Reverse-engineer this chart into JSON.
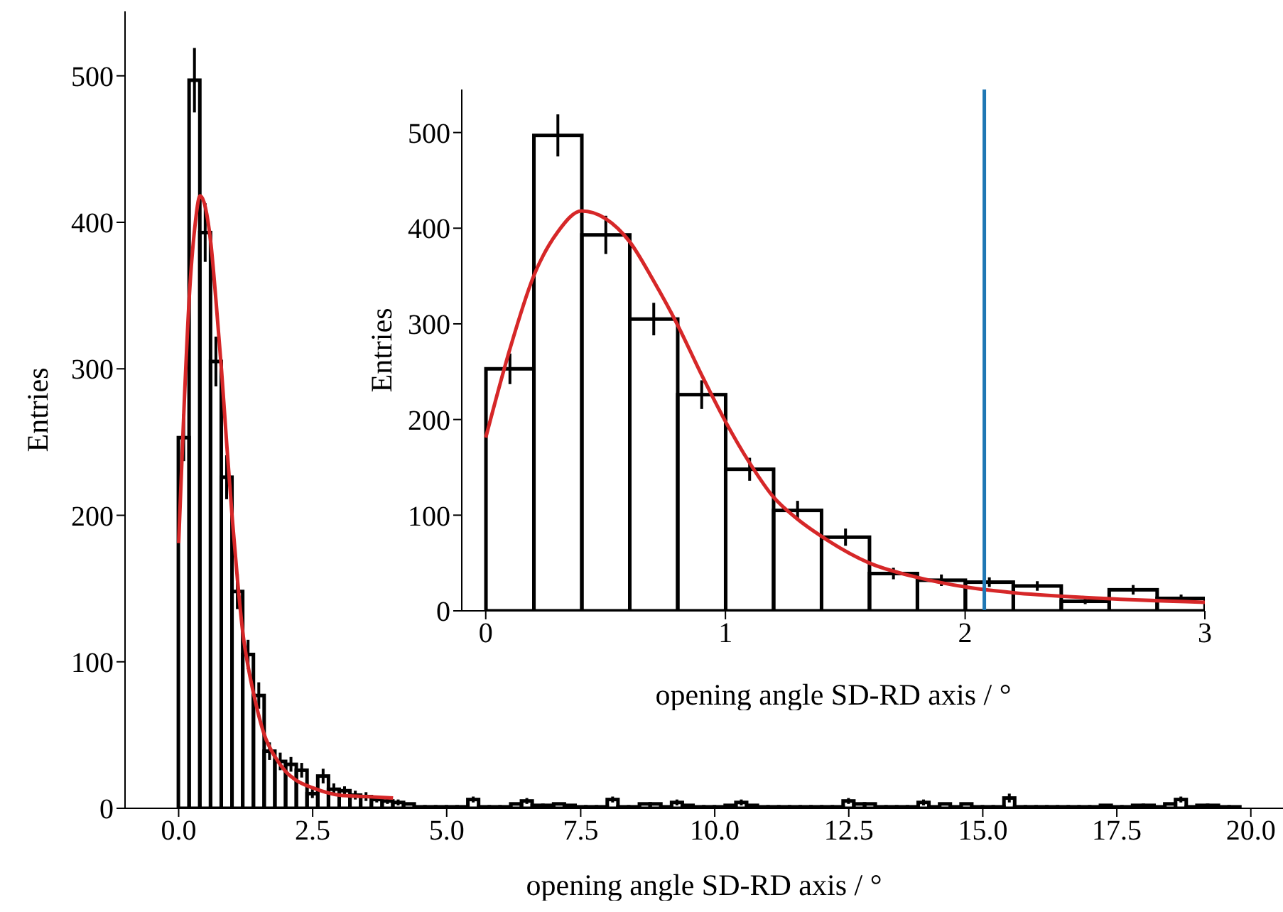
{
  "chart_data": [
    {
      "type": "histogram",
      "xlabel": "opening angle SD-RD axis / °",
      "ylabel": "Entries",
      "xlim": [
        -1,
        20.6
      ],
      "xticks": [
        {
          "value": 0,
          "label": "0.0"
        },
        {
          "value": 2.5,
          "label": "2.5"
        },
        {
          "value": 5,
          "label": "5.0"
        },
        {
          "value": 7.5,
          "label": "7.5"
        },
        {
          "value": 10,
          "label": "10.0"
        },
        {
          "value": 12.5,
          "label": "12.5"
        },
        {
          "value": 15,
          "label": "15.0"
        },
        {
          "value": 17.5,
          "label": "17.5"
        },
        {
          "value": 20,
          "label": "20.0"
        }
      ],
      "ylim": [
        0,
        544
      ],
      "yticks": [
        0,
        100,
        200,
        300,
        400,
        500
      ],
      "series": [
        {
          "type": "histogram",
          "color": "#000000",
          "bins": [
            0,
            0.2,
            0.4,
            0.6,
            0.8,
            1,
            1.2,
            1.4,
            1.6,
            1.8,
            2,
            2.2,
            2.4,
            2.6,
            2.8,
            3,
            3.2,
            3.4,
            3.6,
            3.8,
            4,
            4.2,
            4.4,
            4.6,
            4.8,
            5,
            5.2,
            5.4,
            5.6,
            5.8,
            6,
            6.2,
            6.4,
            6.6,
            6.8,
            7,
            7.2,
            7.4,
            7.6,
            7.8,
            8,
            8.2,
            8.4,
            8.6,
            8.8,
            9,
            9.2,
            9.4,
            9.6,
            9.8,
            10,
            10.2,
            10.4,
            10.6,
            10.8,
            11,
            11.2,
            11.4,
            11.6,
            11.8,
            12,
            12.2,
            12.4,
            12.6,
            12.8,
            13,
            13.2,
            13.4,
            13.6,
            13.8,
            14,
            14.2,
            14.4,
            14.6,
            14.8,
            15,
            15.2,
            15.4,
            15.6,
            15.8,
            16,
            16.2,
            16.4,
            16.6,
            16.8,
            17,
            17.2,
            17.4,
            17.6,
            17.8,
            18,
            18.2,
            18.4,
            18.6,
            18.8,
            19,
            19.2,
            19.4,
            19.6,
            19.8
          ],
          "values": [
            253,
            497,
            393,
            305,
            226,
            148,
            105,
            77,
            39,
            32,
            30,
            26,
            10,
            22,
            13,
            12,
            9,
            8,
            6,
            5,
            4,
            3,
            1,
            1,
            1,
            1,
            1,
            6,
            1,
            1,
            1,
            3,
            5,
            2,
            2,
            3,
            2,
            1,
            1,
            1,
            6,
            1,
            1,
            3,
            3,
            1,
            4,
            2,
            1,
            1,
            1,
            2,
            4,
            2,
            1,
            1,
            1,
            1,
            1,
            1,
            1,
            1,
            5,
            3,
            3,
            1,
            1,
            1,
            1,
            4,
            1,
            3,
            1,
            3,
            1,
            1,
            1,
            7,
            1,
            1,
            1,
            1,
            1,
            1,
            1,
            1,
            2,
            1,
            1,
            2,
            2,
            1,
            3,
            6,
            1,
            2,
            2,
            1,
            1
          ],
          "errors": [
            16,
            22,
            20,
            17,
            15,
            12,
            10,
            9,
            6,
            6,
            5,
            5,
            3,
            5,
            4,
            3,
            3,
            3,
            2,
            2,
            2,
            null,
            null,
            null,
            null,
            null,
            null,
            2,
            null,
            null,
            null,
            null,
            2,
            null,
            null,
            null,
            null,
            null,
            null,
            null,
            2,
            null,
            null,
            null,
            null,
            null,
            2,
            null,
            null,
            null,
            null,
            null,
            2,
            null,
            null,
            null,
            null,
            null,
            null,
            null,
            null,
            null,
            2,
            null,
            null,
            null,
            null,
            null,
            null,
            2,
            null,
            null,
            null,
            null,
            null,
            null,
            null,
            3,
            null,
            null,
            null,
            null,
            null,
            null,
            null,
            null,
            null,
            null,
            null,
            null,
            null,
            null,
            null,
            2,
            null,
            null,
            null,
            null,
            null
          ]
        },
        {
          "type": "line",
          "color": "#d62728",
          "x": [
            0,
            0.1,
            0.2,
            0.3,
            0.4,
            0.5,
            0.6,
            0.7,
            0.8,
            0.9,
            1,
            1.1,
            1.2,
            1.3,
            1.4,
            1.6,
            1.8,
            2,
            2.2,
            2.5,
            3,
            3.5,
            4
          ],
          "values": [
            181,
            273,
            350,
            396,
            418,
            410,
            386,
            345,
            299,
            247,
            198,
            155,
            119,
            96,
            78,
            50,
            35,
            25,
            19,
            14,
            9,
            8,
            7
          ]
        }
      ]
    },
    {
      "type": "histogram",
      "xlabel": "opening angle SD-RD axis / °",
      "ylabel": "Entries",
      "xlim": [
        -0.1,
        3
      ],
      "xticks": [
        0,
        1,
        2,
        3
      ],
      "ylim": [
        0,
        545
      ],
      "yticks": [
        0,
        100,
        200,
        300,
        400,
        500
      ],
      "ref_lines": [
        {
          "axis": "x",
          "value": 2.08,
          "color": "#1f77b4"
        }
      ],
      "series": [
        {
          "type": "histogram",
          "color": "#000000",
          "bins": [
            0,
            0.2,
            0.4,
            0.6,
            0.8,
            1,
            1.2,
            1.4,
            1.6,
            1.8,
            2,
            2.2,
            2.4,
            2.6,
            2.8,
            3
          ],
          "values": [
            253,
            497,
            393,
            305,
            226,
            148,
            105,
            77,
            39,
            32,
            30,
            26,
            10,
            22,
            13
          ],
          "errors": [
            16,
            22,
            20,
            17,
            15,
            12,
            10,
            9,
            6,
            6,
            5,
            5,
            3,
            5,
            4
          ]
        },
        {
          "type": "line",
          "color": "#d62728",
          "x": [
            0,
            0.1,
            0.2,
            0.3,
            0.4,
            0.5,
            0.6,
            0.7,
            0.8,
            0.9,
            1,
            1.1,
            1.2,
            1.3,
            1.4,
            1.6,
            1.8,
            2,
            2.2,
            2.5,
            3
          ],
          "values": [
            181,
            273,
            350,
            396,
            418,
            410,
            386,
            345,
            299,
            247,
            198,
            155,
            119,
            96,
            78,
            50,
            35,
            25,
            19,
            14,
            9
          ]
        }
      ]
    }
  ]
}
